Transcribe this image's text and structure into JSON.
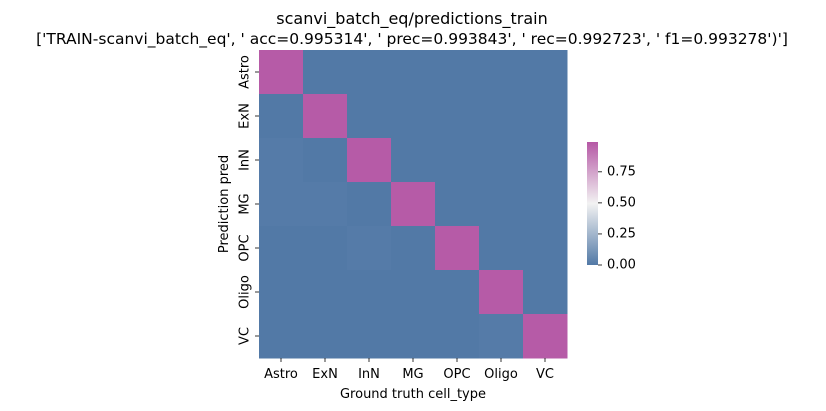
{
  "chart_data": {
    "type": "heatmap",
    "title": "scanvi_batch_eq/predictions_train",
    "subtitle": "['TRAIN-scanvi_batch_eq', ' acc=0.995314', '  prec=0.993843', ' rec=0.992723', ' f1=0.993278')']",
    "xlabel": "Ground truth cell_type",
    "ylabel": "Prediction pred",
    "x_categories": [
      "Astro",
      "ExN",
      "InN",
      "MG",
      "OPC",
      "Oligo",
      "VC"
    ],
    "y_categories": [
      "Astro",
      "ExN",
      "InN",
      "MG",
      "OPC",
      "Oligo",
      "VC"
    ],
    "values": [
      [
        0.99,
        0.0,
        0.0,
        0.0,
        0.0,
        0.0,
        0.0
      ],
      [
        0.0,
        0.99,
        0.0,
        0.0,
        0.0,
        0.0,
        0.0
      ],
      [
        0.01,
        0.0,
        0.99,
        0.0,
        0.0,
        0.0,
        0.0
      ],
      [
        0.01,
        0.01,
        0.0,
        0.99,
        0.0,
        0.0,
        0.0
      ],
      [
        0.0,
        0.0,
        0.01,
        0.0,
        0.99,
        0.0,
        0.0
      ],
      [
        0.0,
        0.0,
        0.0,
        0.0,
        0.0,
        0.99,
        0.0
      ],
      [
        0.0,
        0.0,
        0.0,
        0.0,
        0.0,
        0.01,
        0.99
      ]
    ],
    "colorbar": {
      "range": [
        0,
        1
      ],
      "ticks": [
        0.0,
        0.25,
        0.5,
        0.75
      ],
      "tick_labels": [
        "0.00",
        "0.25",
        "0.50",
        "0.75"
      ],
      "colors": [
        "#5279a6",
        "#f2f2f2",
        "#b558a5"
      ]
    },
    "grid": false,
    "legend": "right (colorbar)"
  }
}
